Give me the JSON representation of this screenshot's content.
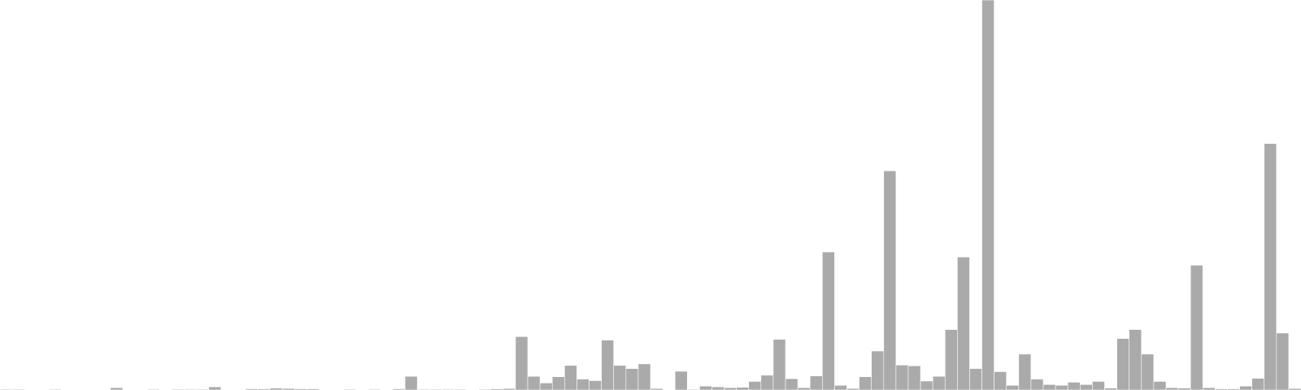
{
  "chart_data": {
    "type": "bar",
    "title": "",
    "xlabel": "",
    "ylabel": "",
    "grid": false,
    "legend": false,
    "bar_color": "#aaaaaa",
    "ylim": [
      0,
      1
    ],
    "values": [
      0.002,
      0.002,
      0.0,
      0.0,
      0.002,
      0.0,
      0.0,
      0.0,
      0.0,
      0.006,
      0.0,
      0.0,
      0.002,
      0.0,
      0.002,
      0.002,
      0.002,
      0.008,
      0.0,
      0.0,
      0.003,
      0.003,
      0.005,
      0.004,
      0.003,
      0.003,
      0.0,
      0.0,
      0.002,
      0.0,
      0.002,
      0.0,
      0.003,
      0.035,
      0.002,
      0.002,
      0.002,
      0.002,
      0.0,
      0.002,
      0.003,
      0.004,
      0.137,
      0.035,
      0.018,
      0.034,
      0.063,
      0.028,
      0.024,
      0.128,
      0.063,
      0.055,
      0.067,
      0.004,
      0.0,
      0.048,
      0.002,
      0.01,
      0.008,
      0.006,
      0.007,
      0.022,
      0.038,
      0.13,
      0.029,
      0.006,
      0.036,
      0.354,
      0.012,
      0.004,
      0.034,
      0.1,
      0.562,
      0.064,
      0.062,
      0.023,
      0.035,
      0.155,
      0.341,
      0.055,
      1.0,
      0.047,
      0.012,
      0.092,
      0.028,
      0.014,
      0.012,
      0.02,
      0.014,
      0.022,
      0.005,
      0.132,
      0.155,
      0.092,
      0.022,
      0.006,
      0.005,
      0.32,
      0.006,
      0.003,
      0.003,
      0.01,
      0.03,
      0.632,
      0.146,
      0.004
    ]
  }
}
